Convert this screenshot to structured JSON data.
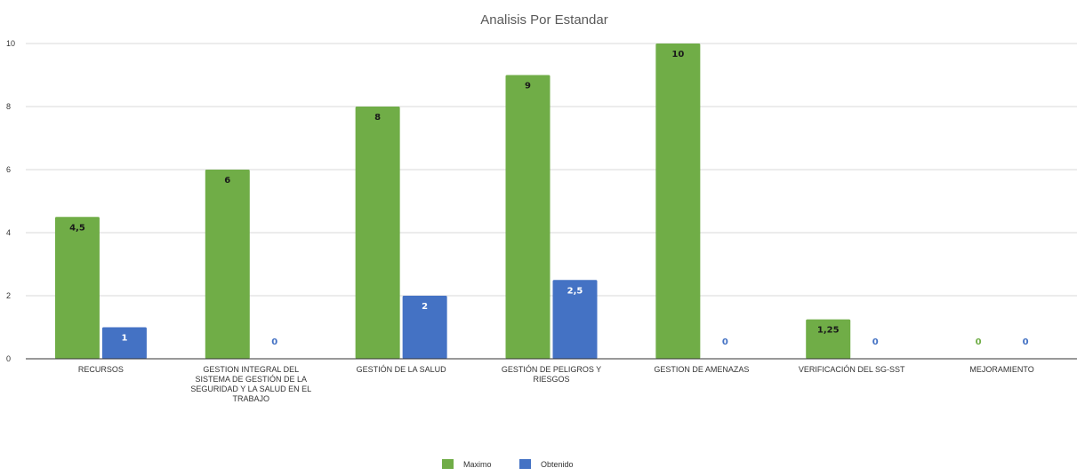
{
  "chart_data": {
    "type": "bar",
    "title": "Analisis Por Estandar",
    "categories": [
      [
        "RECURSOS"
      ],
      [
        "GESTION INTEGRAL DEL",
        "SISTEMA DE GESTIÓN DE LA",
        "SEGURIDAD Y LA SALUD EN EL",
        "TRABAJO"
      ],
      [
        "GESTIÓN DE LA SALUD"
      ],
      [
        "GESTIÓN DE PELIGROS Y",
        "RIESGOS"
      ],
      [
        "GESTION DE AMENAZAS"
      ],
      [
        "VERIFICACIÓN DEL SG-SST"
      ],
      [
        "MEJORAMIENTO"
      ]
    ],
    "series": [
      {
        "name": "Maximo",
        "color": "#70ad47",
        "values": [
          4.5,
          6,
          8,
          9,
          10,
          1.25,
          0
        ],
        "labels": [
          "4,5",
          "6",
          "8",
          "9",
          "10",
          "1,25",
          "0"
        ]
      },
      {
        "name": "Obtenido",
        "color": "#4472c4",
        "values": [
          1,
          0,
          2,
          2.5,
          0,
          0,
          0
        ],
        "labels": [
          "1",
          "0",
          "2",
          "2,5",
          "0",
          "0",
          "0"
        ]
      }
    ],
    "ylim": [
      0,
      10
    ],
    "yticks": [
      "0",
      "2",
      "4",
      "6",
      "8",
      "10"
    ],
    "grid": true,
    "legend_position": "bottom"
  }
}
